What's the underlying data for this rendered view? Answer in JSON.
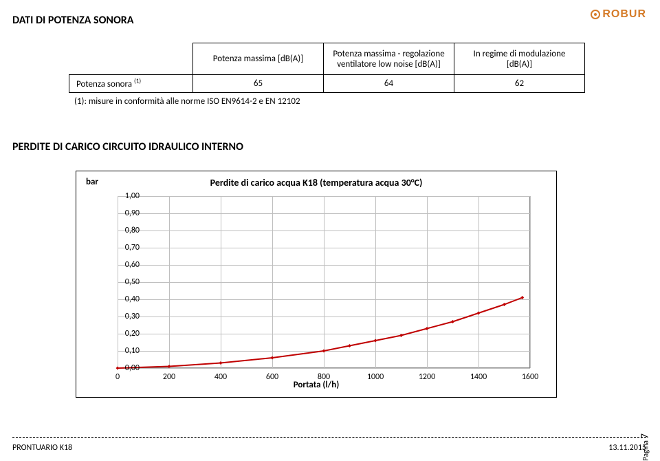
{
  "brand_text": "ROBUR",
  "page_title": "DATI DI POTENZA SONORA",
  "table": {
    "col_headers": [
      "Potenza massima [dB(A)]",
      "Potenza massima - regolazione ventilatore  low noise [dB(A)]",
      "In regime di modulazione [dB(A)]"
    ],
    "row_label_html": "Potenza sonora <sup>(1)</sup>",
    "row_label_text": "Potenza sonora (1)",
    "values": [
      "65",
      "64",
      "62"
    ]
  },
  "footnote": "(1): misure in conformità alle norme ISO EN9614-2 e EN 12102",
  "chart_section_title": "PERDITE DI CARICO CIRCUITO IDRAULICO INTERNO",
  "chart": {
    "type": "line",
    "title": "Perdite di carico acqua K18  (temperatura acqua 30°C)",
    "y_unit": "bar",
    "x_label": "Portata (l/h)",
    "xlim": [
      0,
      1600
    ],
    "ylim": [
      0.0,
      1.0
    ],
    "xtick_step": 200,
    "ytick_step": 0.1,
    "xtick_labels": [
      "0",
      "200",
      "400",
      "600",
      "800",
      "1000",
      "1200",
      "1400",
      "1600"
    ],
    "ytick_labels": [
      "0,00",
      "0,10",
      "0,20",
      "0,30",
      "0,40",
      "0,50",
      "0,60",
      "0,70",
      "0,80",
      "0,90",
      "1,00"
    ],
    "grid_color": "#bfbfbf",
    "background_color": "#ffffff",
    "series": {
      "color": "#c00000",
      "marker": "diamond",
      "marker_size": 5,
      "line_width": 2,
      "points": [
        {
          "x": 0,
          "y": 0.0
        },
        {
          "x": 200,
          "y": 0.01
        },
        {
          "x": 400,
          "y": 0.03
        },
        {
          "x": 600,
          "y": 0.06
        },
        {
          "x": 800,
          "y": 0.1
        },
        {
          "x": 900,
          "y": 0.13
        },
        {
          "x": 1000,
          "y": 0.16
        },
        {
          "x": 1100,
          "y": 0.19
        },
        {
          "x": 1200,
          "y": 0.23
        },
        {
          "x": 1300,
          "y": 0.27
        },
        {
          "x": 1400,
          "y": 0.32
        },
        {
          "x": 1500,
          "y": 0.37
        },
        {
          "x": 1570,
          "y": 0.41
        }
      ]
    }
  },
  "footer": {
    "left": "PRONTUARIO K18",
    "right": "13.11.2015",
    "page_label": "Pagina",
    "page_number": "7"
  }
}
